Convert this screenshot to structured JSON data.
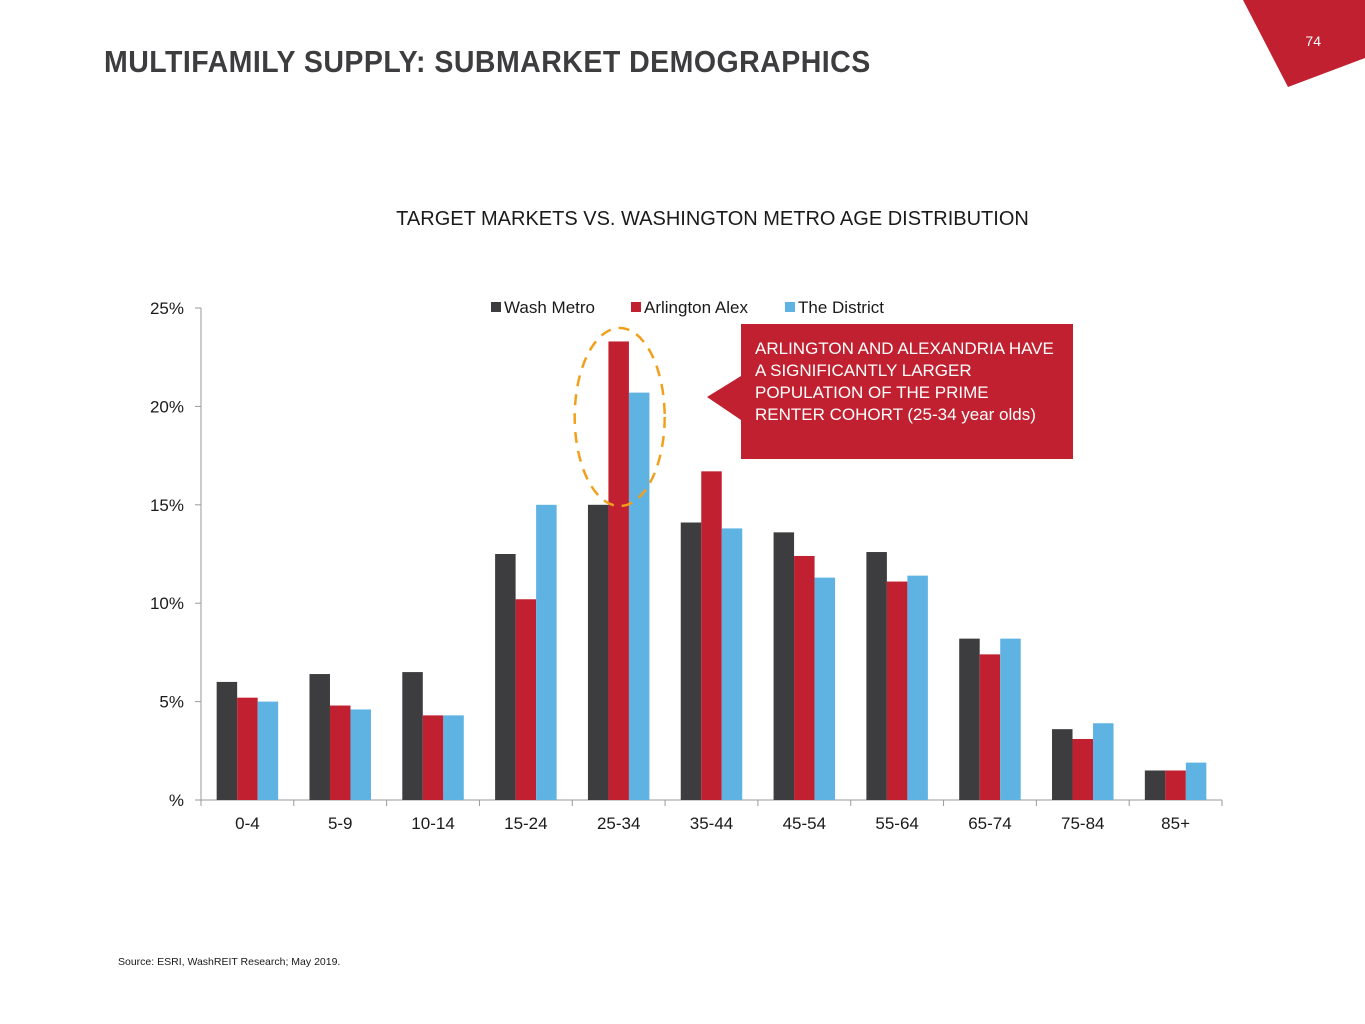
{
  "page": {
    "title": "MULTIFAMILY SUPPLY: SUBMARKET DEMOGRAPHICS",
    "page_number": "74",
    "source": "Source: ESRI, WashREIT Research; May 2019."
  },
  "colors": {
    "brand_red": "#c0202f",
    "wash_metro": "#3d3d3f",
    "arlington_alex": "#c0202f",
    "the_district": "#5fb3e2",
    "highlight_ellipse": "#f2a01c"
  },
  "callout": {
    "text": "ARLINGTON AND ALEXANDRIA HAVE A SIGNIFICANTLY LARGER POPULATION OF THE PRIME RENTER COHORT (25-34 year olds)"
  },
  "chart_data": {
    "type": "bar",
    "title": "TARGET MARKETS VS. WASHINGTON METRO AGE DISTRIBUTION",
    "xlabel": "",
    "ylabel": "",
    "ylim": [
      0,
      25
    ],
    "yticks": [
      0,
      5,
      10,
      15,
      20,
      25
    ],
    "ytick_labels": [
      "%",
      "5%",
      "10%",
      "15%",
      "20%",
      "25%"
    ],
    "legend_position": "top-center",
    "categories": [
      "0-4",
      "5-9",
      "10-14",
      "15-24",
      "25-34",
      "35-44",
      "45-54",
      "55-64",
      "65-74",
      "75-84",
      "85+"
    ],
    "series": [
      {
        "name": "Wash Metro",
        "color": "#3d3d3f",
        "values": [
          6.0,
          6.4,
          6.5,
          12.5,
          15.0,
          14.1,
          13.6,
          12.6,
          8.2,
          3.6,
          1.5
        ]
      },
      {
        "name": "Arlington Alex",
        "color": "#c0202f",
        "values": [
          5.2,
          4.8,
          4.3,
          10.2,
          23.3,
          16.7,
          12.4,
          11.1,
          7.4,
          3.1,
          1.5
        ]
      },
      {
        "name": "The District",
        "color": "#5fb3e2",
        "values": [
          5.0,
          4.6,
          4.3,
          15.0,
          20.7,
          13.8,
          11.3,
          11.4,
          8.2,
          3.9,
          1.9
        ]
      }
    ],
    "highlighted_category": "25-34"
  }
}
